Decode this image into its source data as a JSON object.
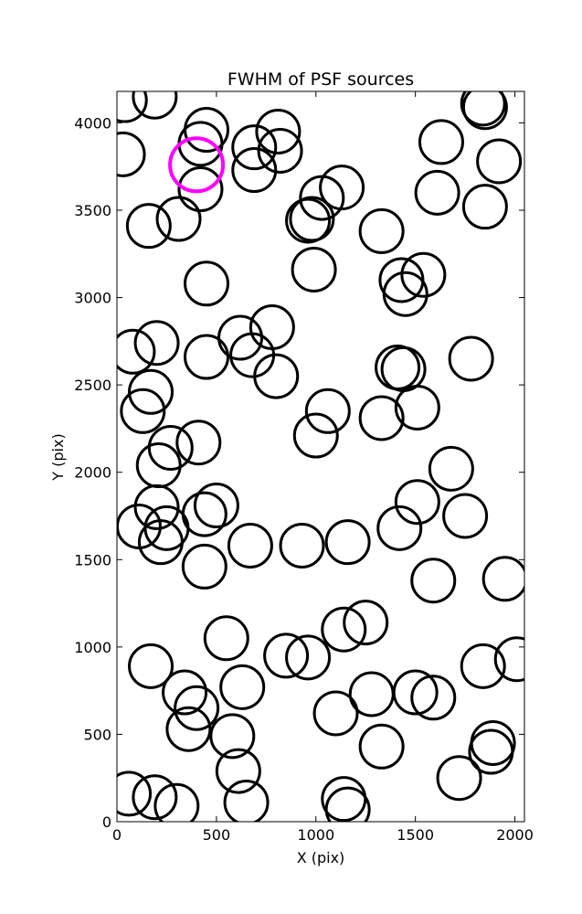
{
  "chart_data": {
    "type": "scatter",
    "title": "FWHM of PSF sources",
    "xlabel": "X (pix)",
    "ylabel": "Y (pix)",
    "xlim": [
      0,
      2048
    ],
    "ylim": [
      0,
      4180
    ],
    "xticks": [
      0,
      500,
      1000,
      1500,
      2000
    ],
    "yticks": [
      0,
      500,
      1000,
      1500,
      2000,
      2500,
      3000,
      3500,
      4000
    ],
    "grid": false,
    "marker": "open circle",
    "colors": {
      "sources": "#000000",
      "highlight": "#ff00ff"
    },
    "series": [
      {
        "role": "sources",
        "points": [
          [
            40,
            4130
          ],
          [
            190,
            4150
          ],
          [
            1840,
            4110
          ],
          [
            1850,
            4090
          ],
          [
            30,
            3820
          ],
          [
            450,
            3960
          ],
          [
            420,
            3880
          ],
          [
            420,
            3620
          ],
          [
            690,
            3860
          ],
          [
            690,
            3730
          ],
          [
            810,
            3950
          ],
          [
            820,
            3840
          ],
          [
            310,
            3450
          ],
          [
            160,
            3410
          ],
          [
            980,
            3450
          ],
          [
            960,
            3440
          ],
          [
            1030,
            3570
          ],
          [
            1130,
            3630
          ],
          [
            1630,
            3890
          ],
          [
            1610,
            3600
          ],
          [
            1920,
            3780
          ],
          [
            1850,
            3520
          ],
          [
            1330,
            3380
          ],
          [
            450,
            3080
          ],
          [
            990,
            3160
          ],
          [
            1430,
            3100
          ],
          [
            1540,
            3130
          ],
          [
            1450,
            3020
          ],
          [
            80,
            2690
          ],
          [
            200,
            2740
          ],
          [
            450,
            2660
          ],
          [
            620,
            2770
          ],
          [
            680,
            2670
          ],
          [
            780,
            2830
          ],
          [
            800,
            2550
          ],
          [
            1410,
            2600
          ],
          [
            1440,
            2590
          ],
          [
            1780,
            2650
          ],
          [
            170,
            2460
          ],
          [
            130,
            2350
          ],
          [
            1060,
            2350
          ],
          [
            1000,
            2210
          ],
          [
            1330,
            2310
          ],
          [
            1510,
            2370
          ],
          [
            270,
            2140
          ],
          [
            210,
            2040
          ],
          [
            410,
            2170
          ],
          [
            1680,
            2020
          ],
          [
            200,
            1800
          ],
          [
            110,
            1690
          ],
          [
            250,
            1680
          ],
          [
            220,
            1600
          ],
          [
            440,
            1760
          ],
          [
            500,
            1810
          ],
          [
            1510,
            1830
          ],
          [
            1420,
            1680
          ],
          [
            1750,
            1750
          ],
          [
            440,
            1460
          ],
          [
            670,
            1580
          ],
          [
            930,
            1580
          ],
          [
            1160,
            1600
          ],
          [
            1590,
            1380
          ],
          [
            1950,
            1390
          ],
          [
            550,
            1050
          ],
          [
            170,
            890
          ],
          [
            850,
            950
          ],
          [
            960,
            940
          ],
          [
            1140,
            1100
          ],
          [
            1250,
            1140
          ],
          [
            2010,
            930
          ],
          [
            1840,
            890
          ],
          [
            340,
            740
          ],
          [
            400,
            650
          ],
          [
            630,
            770
          ],
          [
            1280,
            730
          ],
          [
            1500,
            740
          ],
          [
            1590,
            710
          ],
          [
            1100,
            620
          ],
          [
            360,
            530
          ],
          [
            580,
            490
          ],
          [
            610,
            290
          ],
          [
            1330,
            430
          ],
          [
            1890,
            450
          ],
          [
            1880,
            400
          ],
          [
            60,
            160
          ],
          [
            190,
            140
          ],
          [
            300,
            90
          ],
          [
            650,
            110
          ],
          [
            1140,
            130
          ],
          [
            1160,
            70
          ],
          [
            1720,
            250
          ]
        ]
      },
      {
        "role": "highlight",
        "points": [
          [
            400,
            3760
          ]
        ]
      }
    ]
  }
}
